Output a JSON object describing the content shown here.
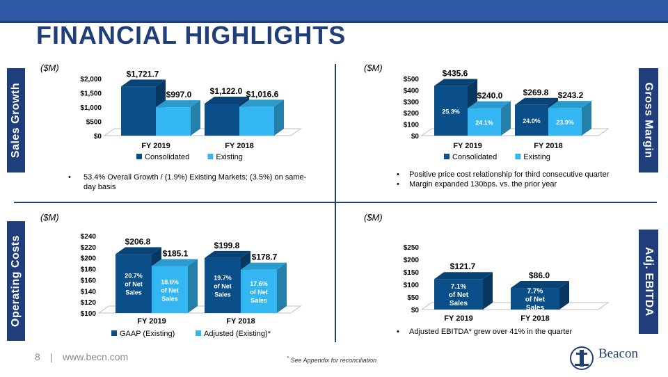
{
  "page": {
    "title": "FINANCIAL HIGHLIGHTS",
    "footer_page": "8",
    "footer_sep": "|",
    "footer_url": "www.becn.com",
    "footnote_mark": "*",
    "footnote": "See Appendix for reconciliation",
    "logo_text": "Beacon"
  },
  "colors": {
    "dark": "#0b4f8a",
    "light": "#33b6f2",
    "navy": "#1f3e7a"
  },
  "side_tabs": {
    "sales_growth": "Sales Growth",
    "gross_margin": "Gross Margin",
    "operating_costs": "Operating Costs",
    "adj_ebitda": "Adj. EBITDA"
  },
  "units": {
    "q1": "($M)",
    "q2": "($M)",
    "q3": "($M)",
    "q4": "($M)"
  },
  "bullets": {
    "q1": [
      "53.4% Overall Growth / (1.9%) Existing Markets; (3.5%) on same-",
      "day basis"
    ],
    "q2": [
      "Positive price cost relationship for third consecutive quarter",
      "Margin expanded 130bps. vs. the prior year"
    ],
    "q4": [
      "Adjusted EBITDA* grew over 41% in the quarter"
    ]
  },
  "chart_data": [
    {
      "id": "sales",
      "type": "bar",
      "title": "Sales Growth",
      "categories": [
        "FY 2019",
        "FY 2018"
      ],
      "series": [
        {
          "name": "Consolidated",
          "values": [
            1721.7,
            1122.0
          ],
          "labels": [
            "$1,721.7",
            "$1,122.0"
          ],
          "inner": [
            "",
            ""
          ]
        },
        {
          "name": "Existing",
          "values": [
            997.0,
            1016.6
          ],
          "labels": [
            "$997.0",
            "$1,016.6"
          ],
          "inner": [
            "",
            ""
          ]
        }
      ],
      "ylim": [
        0,
        2000
      ],
      "yticks": [
        "$0",
        "$500",
        "$1,000",
        "$1,500",
        "$2,000"
      ],
      "legend": "bottom"
    },
    {
      "id": "margin",
      "type": "bar",
      "title": "Gross Margin",
      "categories": [
        "FY 2019",
        "FY 2018"
      ],
      "series": [
        {
          "name": "Consolidated",
          "values": [
            435.6,
            269.8
          ],
          "labels": [
            "$435.6",
            "$269.8"
          ],
          "inner": [
            "25.3%",
            "24.0%"
          ]
        },
        {
          "name": "Existing",
          "values": [
            240.0,
            243.2
          ],
          "labels": [
            "$240.0",
            "$243.2"
          ],
          "inner": [
            "24.1%",
            "23.9%"
          ]
        }
      ],
      "ylim": [
        0,
        500
      ],
      "yticks": [
        "$0",
        "$100",
        "$200",
        "$300",
        "$400",
        "$500"
      ],
      "legend": "bottom"
    },
    {
      "id": "opex",
      "type": "bar",
      "title": "Operating Costs",
      "categories": [
        "FY 2019",
        "FY 2018"
      ],
      "series": [
        {
          "name": "GAAP (Existing)",
          "values": [
            206.8,
            199.8
          ],
          "labels": [
            "$206.8",
            "$199.8"
          ],
          "inner": [
            "20.7%\nof Net\nSales",
            "19.7%\nof Net\nSales"
          ]
        },
        {
          "name": "Adjusted (Existing)*",
          "values": [
            185.1,
            178.7
          ],
          "labels": [
            "$185.1",
            "$178.7"
          ],
          "inner": [
            "18.6%\nof Net\nSales",
            "17.6%\nof Net\nSales"
          ]
        }
      ],
      "ylim": [
        100,
        240
      ],
      "yticks": [
        "$100",
        "$120",
        "$140",
        "$160",
        "$180",
        "$200",
        "$220",
        "$240"
      ],
      "legend": "bottom"
    },
    {
      "id": "ebitda",
      "type": "bar",
      "title": "Adj. EBITDA",
      "categories": [
        "FY 2019",
        "FY 2018"
      ],
      "series": [
        {
          "name": "Adj. EBITDA",
          "values": [
            121.7,
            86.0
          ],
          "labels": [
            "$121.7",
            "$86.0"
          ],
          "inner": [
            "7.1%\nof Net\nSales",
            "7.7%\nof Net\nSales"
          ]
        }
      ],
      "ylim": [
        0,
        250
      ],
      "yticks": [
        "$0",
        "$50",
        "$100",
        "$150",
        "$200",
        "$250"
      ],
      "legend": "none"
    }
  ]
}
